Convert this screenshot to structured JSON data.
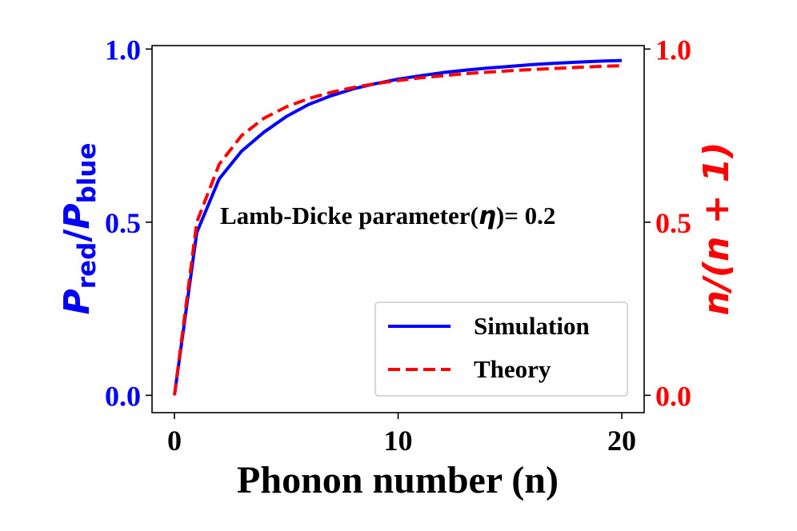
{
  "chart_data": {
    "type": "line",
    "xlabel": "Phonon number (n)",
    "ylabel_left": {
      "main": "P",
      "sub1": "red",
      "slash": "/",
      "main2": "P",
      "sub2": "blue"
    },
    "ylabel_right": "n/(n + 1)",
    "xlim": [
      -1,
      21
    ],
    "ylim_left": [
      -0.05,
      1.01
    ],
    "ylim_right": [
      -0.05,
      1.01
    ],
    "x_ticks": [
      0,
      10,
      20
    ],
    "x_tick_labels": [
      "0",
      "10",
      "20"
    ],
    "y_ticks_left": [
      0.0,
      0.5,
      1.0
    ],
    "y_tick_labels_left": [
      "0.0",
      "0.5",
      "1.0"
    ],
    "y_ticks_right": [
      0.0,
      0.5,
      1.0
    ],
    "y_tick_labels_right": [
      "0.0",
      "0.5",
      "1.0"
    ],
    "annotation": {
      "prefix": "Lamb-Dicke parameter(",
      "symbol": "η",
      "suffix": ")= 0.2"
    },
    "legend_position": "lower-right",
    "series": [
      {
        "name": "Simulation",
        "axis": "left",
        "color": "#0000ff",
        "style": "solid",
        "x": [
          0,
          1,
          2,
          3,
          4,
          5,
          6,
          7,
          8,
          9,
          10,
          11,
          12,
          13,
          14,
          15,
          16,
          17,
          18,
          19,
          20
        ],
        "values": [
          0.0,
          0.47,
          0.625,
          0.705,
          0.76,
          0.805,
          0.84,
          0.865,
          0.885,
          0.9,
          0.913,
          0.923,
          0.932,
          0.939,
          0.945,
          0.95,
          0.955,
          0.959,
          0.962,
          0.965,
          0.967
        ]
      },
      {
        "name": "Theory",
        "axis": "right",
        "color": "#ff0000",
        "style": "dashed",
        "x": [
          0,
          1,
          2,
          3,
          4,
          5,
          6,
          7,
          8,
          9,
          10,
          11,
          12,
          13,
          14,
          15,
          16,
          17,
          18,
          19,
          20
        ],
        "values": [
          0.0,
          0.5,
          0.667,
          0.75,
          0.8,
          0.833,
          0.857,
          0.875,
          0.889,
          0.9,
          0.909,
          0.917,
          0.923,
          0.929,
          0.933,
          0.9375,
          0.941,
          0.944,
          0.947,
          0.95,
          0.952
        ]
      }
    ],
    "colors": {
      "left_axis": "#0000ff",
      "right_axis": "#ff0000",
      "bottom_axis": "#000000"
    }
  }
}
